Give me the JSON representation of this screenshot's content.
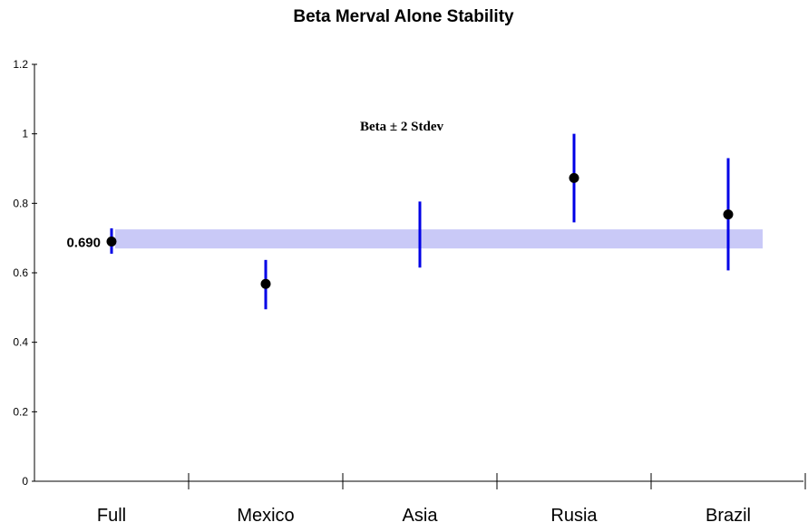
{
  "chart_data": {
    "type": "errorbar",
    "title": "Beta Merval Alone Stability",
    "annotation": "Beta ± 2 Stdev",
    "categories": [
      "Full",
      "Mexico",
      "Asia",
      "Rusia",
      "Brazil"
    ],
    "beta": [
      0.69,
      0.568,
      null,
      0.873,
      0.768
    ],
    "lower": [
      0.655,
      0.495,
      0.615,
      0.745,
      0.607
    ],
    "upper": [
      0.728,
      0.637,
      0.805,
      1.0,
      0.93
    ],
    "reference": {
      "value_label": "0.690",
      "low": 0.67,
      "high": 0.725
    },
    "yticks": [
      "0",
      "0.2",
      "0.4",
      "0.6",
      "0.8",
      "1",
      "1.2"
    ],
    "ylim": [
      0,
      1.2
    ],
    "grid": false,
    "colors": {
      "errorbar": "#0000e6",
      "point": "#000000",
      "band": "#c9c9f7",
      "axis": "#000000"
    }
  }
}
